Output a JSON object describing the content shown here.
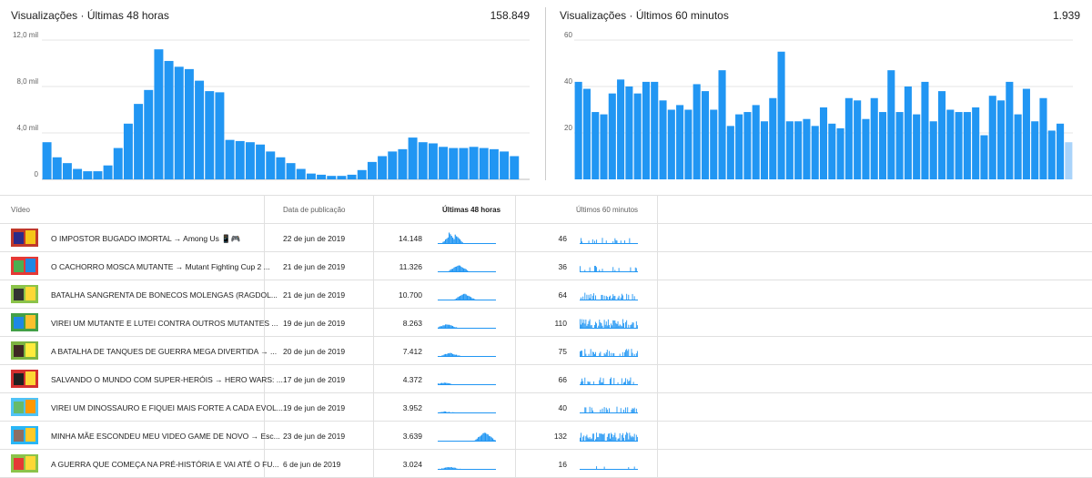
{
  "colors": {
    "bar": "#2196f3",
    "bar_light": "#a9d3fa",
    "grid": "#e6e6e6",
    "axis": "#bdbdbd"
  },
  "chart_data": [
    {
      "type": "bar",
      "title": "Visualizações · Últimas 48 horas",
      "total": "158.849",
      "yticks": [
        "12,0 mil",
        "8,0 mil",
        "4,0 mil",
        "0"
      ],
      "ylim": [
        0,
        12000
      ],
      "grid": true,
      "values": [
        3200,
        1900,
        1400,
        900,
        700,
        700,
        1200,
        2700,
        4800,
        6500,
        7700,
        11200,
        10200,
        9700,
        9500,
        8500,
        7600,
        7500,
        3400,
        3300,
        3200,
        3000,
        2400,
        1900,
        1400,
        900,
        500,
        400,
        300,
        300,
        400,
        800,
        1500,
        2000,
        2400,
        2600,
        3600,
        3200,
        3100,
        2800,
        2700,
        2700,
        2800,
        2700,
        2600,
        2400,
        2000,
        0
      ]
    },
    {
      "type": "bar",
      "title": "Visualizações · Últimos 60 minutos",
      "total": "1.939",
      "yticks": [
        "60",
        "40",
        "20"
      ],
      "ylim": [
        0,
        60
      ],
      "grid": true,
      "values": [
        42,
        39,
        29,
        28,
        37,
        43,
        40,
        37,
        42,
        42,
        34,
        30,
        32,
        30,
        41,
        38,
        30,
        47,
        23,
        28,
        29,
        32,
        25,
        35,
        55,
        25,
        25,
        26,
        23,
        31,
        24,
        22,
        35,
        34,
        26,
        35,
        29,
        47,
        29,
        40,
        28,
        42,
        25,
        38,
        30,
        29,
        29,
        31,
        19,
        36,
        34,
        42,
        28,
        39,
        25,
        35,
        21,
        24,
        16
      ],
      "last_partial": true
    }
  ],
  "table": {
    "headers": {
      "video": "Vídeo",
      "date": "Data de publicação",
      "h48": "Últimas 48 horas",
      "m60": "Últimos 60 minutos"
    },
    "rows": [
      {
        "title": "O IMPOSTOR BUGADO IMORTAL → Among Us 📱🎮",
        "date": "22 de jun de 2019",
        "h48": "14.148",
        "m60": "46",
        "thumb": [
          "#c0392b",
          "#2b2b8a",
          "#f5c518"
        ]
      },
      {
        "title": "O CACHORRO MOSCA MUTANTE → Mutant Fighting Cup 2 ...",
        "date": "21 de jun de 2019",
        "h48": "11.326",
        "m60": "36",
        "thumb": [
          "#e53935",
          "#4caf50",
          "#1e88e5"
        ]
      },
      {
        "title": "BATALHA SANGRENTA DE BONECOS MOLENGAS (RAGDOL...",
        "date": "21 de jun de 2019",
        "h48": "10.700",
        "m60": "64",
        "thumb": [
          "#8bc34a",
          "#333333",
          "#fdd835"
        ]
      },
      {
        "title": "VIREI UM MUTANTE E LUTEI CONTRA OUTROS MUTANTES ...",
        "date": "19 de jun de 2019",
        "h48": "8.263",
        "m60": "110",
        "thumb": [
          "#43a047",
          "#1e88e5",
          "#fbc02d"
        ]
      },
      {
        "title": "A BATALHA DE TANQUES DE GUERRA MEGA DIVERTIDA → ...",
        "date": "20 de jun de 2019",
        "h48": "7.412",
        "m60": "75",
        "thumb": [
          "#7cb342",
          "#3e2723",
          "#ffeb3b"
        ]
      },
      {
        "title": "SALVANDO O MUNDO COM SUPER-HERÓIS → HERO WARS: ...",
        "date": "17 de jun de 2019",
        "h48": "4.372",
        "m60": "66",
        "thumb": [
          "#d32f2f",
          "#212121",
          "#fdd835"
        ]
      },
      {
        "title": "VIREI UM DINOSSAURO E FIQUEI MAIS FORTE A CADA EVOL...",
        "date": "19 de jun de 2019",
        "h48": "3.952",
        "m60": "40",
        "thumb": [
          "#4fc3f7",
          "#66bb6a",
          "#ff9800"
        ]
      },
      {
        "title": "MINHA MÃE ESCONDEU MEU VIDEO GAME DE NOVO → Esc...",
        "date": "23 de jun de 2019",
        "h48": "3.639",
        "m60": "132",
        "thumb": [
          "#29b6f6",
          "#8d6e63",
          "#ffca28"
        ]
      },
      {
        "title": "A GUERRA QUE COMEÇA NA PRÉ-HISTÓRIA E VAI ATÉ O FU...",
        "date": "6 de jun de 2019",
        "h48": "3.024",
        "m60": "16",
        "thumb": [
          "#8bc34a",
          "#e53935",
          "#fdd835"
        ]
      }
    ]
  }
}
